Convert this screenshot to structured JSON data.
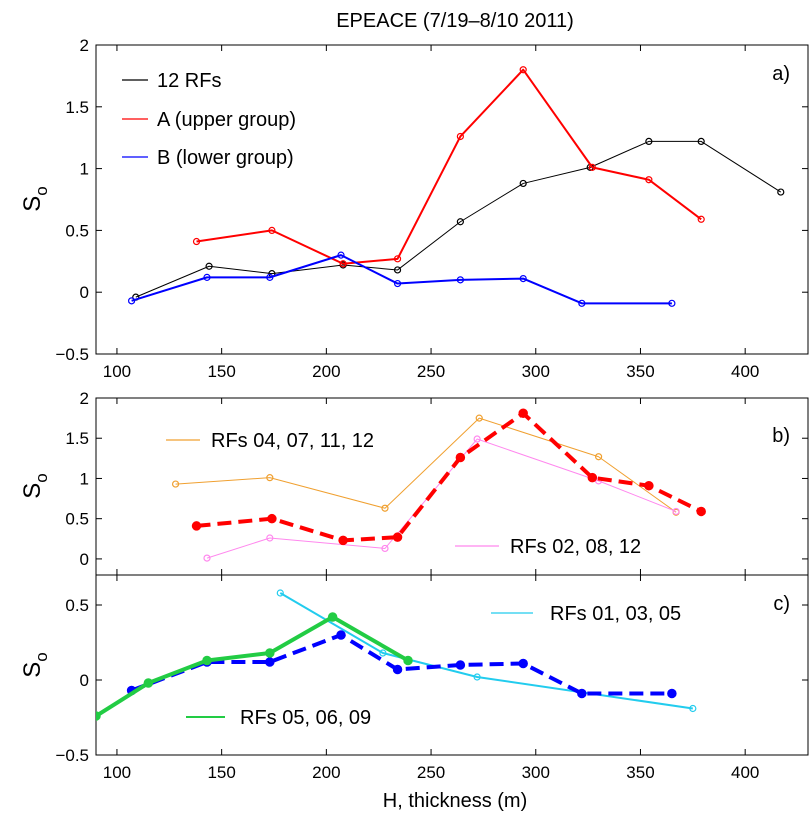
{
  "figure": {
    "title": "EPEACE (7/19–8/10 2011)",
    "xlabel": "H, thickness (m)"
  },
  "chart_data": [
    {
      "type": "line",
      "panel_label": "a)",
      "ylabel_main": "S",
      "ylabel_sub": "o",
      "xlim": [
        90,
        430
      ],
      "ylim": [
        -0.5,
        2
      ],
      "xticks": [
        100,
        150,
        200,
        250,
        300,
        350,
        400
      ],
      "yticks": [
        -0.5,
        0,
        0.5,
        1,
        1.5,
        2
      ],
      "ytick_labels": [
        "−0.5",
        "0",
        "0.5",
        "1",
        "1.5",
        "2"
      ],
      "legend_position": "top-left",
      "series": [
        {
          "name": "12 RFs",
          "color": "#000000",
          "style": "solid",
          "width": 1,
          "marker_size": 3,
          "in_legend": true,
          "points": [
            [
              109,
              -0.04
            ],
            [
              144,
              0.21
            ],
            [
              174,
              0.15
            ],
            [
              208,
              0.22
            ],
            [
              234,
              0.18
            ],
            [
              264,
              0.57
            ],
            [
              294,
              0.88
            ],
            [
              326,
              1.01
            ],
            [
              354,
              1.22
            ],
            [
              379,
              1.22
            ],
            [
              417,
              0.81
            ]
          ]
        },
        {
          "name": "A (upper group)",
          "color": "#ff0000",
          "style": "solid",
          "width": 2,
          "marker_size": 3,
          "in_legend": true,
          "points": [
            [
              138,
              0.41
            ],
            [
              174,
              0.5
            ],
            [
              208,
              0.23
            ],
            [
              234,
              0.27
            ],
            [
              264,
              1.26
            ],
            [
              294,
              1.8
            ],
            [
              327,
              1.01
            ],
            [
              354,
              0.91
            ],
            [
              379,
              0.59
            ]
          ]
        },
        {
          "name": "B (lower group)",
          "color": "#0000ff",
          "style": "solid",
          "width": 2,
          "marker_size": 3,
          "in_legend": true,
          "points": [
            [
              107,
              -0.07
            ],
            [
              143,
              0.12
            ],
            [
              173,
              0.12
            ],
            [
              207,
              0.3
            ],
            [
              234,
              0.07
            ],
            [
              264,
              0.1
            ],
            [
              294,
              0.11
            ],
            [
              322,
              -0.09
            ],
            [
              365,
              -0.09
            ]
          ]
        }
      ]
    },
    {
      "type": "line",
      "panel_label": "b)",
      "ylabel_main": "S",
      "ylabel_sub": "o",
      "xlim": [
        90,
        430
      ],
      "ylim": [
        -0.2,
        2
      ],
      "xticks": [
        100,
        150,
        200,
        250,
        300,
        350,
        400
      ],
      "yticks": [
        0,
        0.5,
        1,
        1.5,
        2
      ],
      "ytick_labels": [
        "0",
        "0.5",
        "1",
        "1.5",
        "2"
      ],
      "series": [
        {
          "name": "RFs 04, 07, 11, 12",
          "color": "#f0a030",
          "style": "solid",
          "width": 1,
          "marker_size": 3,
          "in_legend": true,
          "points": [
            [
              128,
              0.93
            ],
            [
              173,
              1.01
            ],
            [
              228,
              0.63
            ],
            [
              273,
              1.75
            ],
            [
              330,
              1.27
            ],
            [
              367,
              0.58
            ]
          ]
        },
        {
          "name": "RFs 02, 08, 12",
          "color": "#ff88ee",
          "style": "solid",
          "width": 1,
          "marker_size": 3,
          "in_legend": true,
          "points": [
            [
              143,
              0.01
            ],
            [
              173,
              0.26
            ],
            [
              228,
              0.13
            ],
            [
              272,
              1.49
            ],
            [
              330,
              0.97
            ],
            [
              367,
              0.59
            ]
          ]
        },
        {
          "name": "A (upper group)",
          "color": "#ff0000",
          "style": "dashed",
          "width": 4,
          "marker_size": 4,
          "in_legend": false,
          "points": [
            [
              138,
              0.41
            ],
            [
              174,
              0.5
            ],
            [
              208,
              0.23
            ],
            [
              234,
              0.27
            ],
            [
              264,
              1.26
            ],
            [
              294,
              1.81
            ],
            [
              327,
              1.01
            ],
            [
              354,
              0.91
            ],
            [
              379,
              0.59
            ]
          ]
        }
      ]
    },
    {
      "type": "line",
      "panel_label": "c)",
      "ylabel_main": "S",
      "ylabel_sub": "o",
      "xlim": [
        90,
        430
      ],
      "ylim": [
        -0.5,
        0.7
      ],
      "xticks": [
        100,
        150,
        200,
        250,
        300,
        350,
        400
      ],
      "xtick_labels_shown": true,
      "yticks": [
        -0.5,
        0,
        0.5
      ],
      "ytick_labels": [
        "−0.5",
        "0",
        "0.5"
      ],
      "series": [
        {
          "name": "RFs 01, 03, 05",
          "color": "#22ccee",
          "style": "solid",
          "width": 2,
          "marker_size": 3,
          "in_legend": true,
          "points": [
            [
              178,
              0.58
            ],
            [
              227,
              0.18
            ],
            [
              272,
              0.02
            ],
            [
              375,
              -0.19
            ]
          ]
        },
        {
          "name": "B (lower group)",
          "color": "#0000ff",
          "style": "dashed",
          "width": 4,
          "marker_size": 4,
          "in_legend": false,
          "points": [
            [
              107,
              -0.07
            ],
            [
              143,
              0.12
            ],
            [
              173,
              0.12
            ],
            [
              207,
              0.3
            ],
            [
              234,
              0.07
            ],
            [
              264,
              0.1
            ],
            [
              294,
              0.11
            ],
            [
              322,
              -0.09
            ],
            [
              365,
              -0.09
            ]
          ]
        },
        {
          "name": "RFs 05, 06, 09",
          "color": "#22cc44",
          "style": "solid",
          "width": 4,
          "marker_size": 4,
          "in_legend": true,
          "points": [
            [
              90,
              -0.24
            ],
            [
              115,
              -0.02
            ],
            [
              143,
              0.13
            ],
            [
              173,
              0.18
            ],
            [
              203,
              0.42
            ],
            [
              239,
              0.13
            ]
          ]
        }
      ]
    }
  ]
}
